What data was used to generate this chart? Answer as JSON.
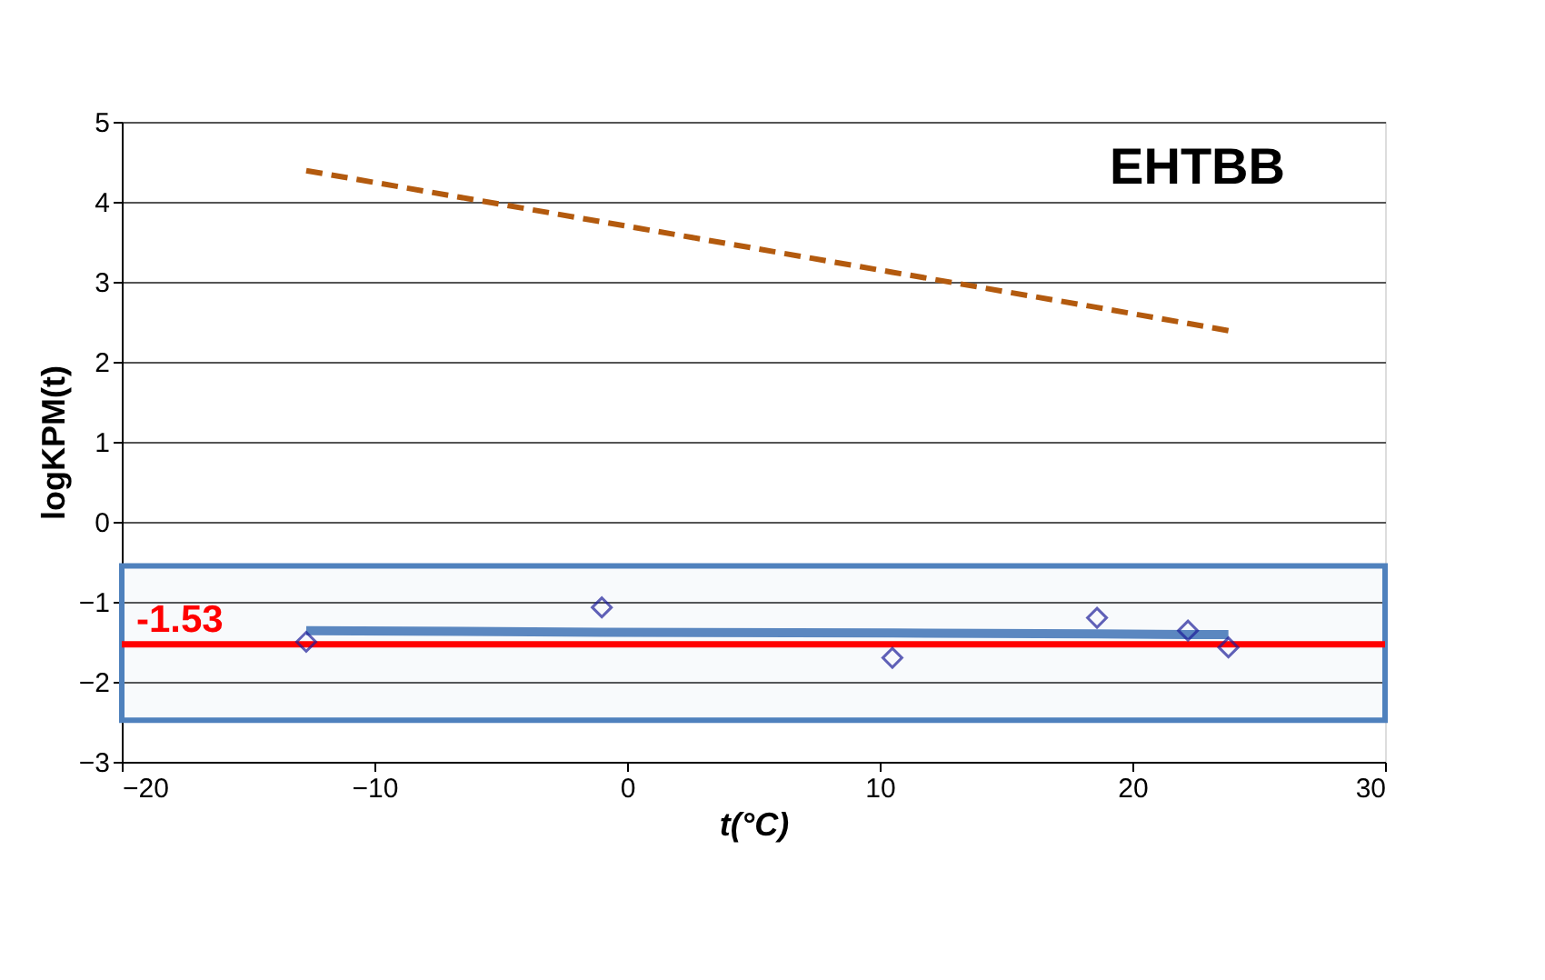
{
  "chart_data": {
    "type": "scatter",
    "xlabel": "t(°C)",
    "ylabel": "logKPM(t)",
    "annotations": [
      "EHTBB"
    ],
    "x": [
      -12.7,
      -1.0,
      10.5,
      18.6,
      22.2,
      23.8
    ],
    "series": [
      {
        "type": "scatter",
        "color": "#1f1f9a",
        "marker": "diamond",
        "values": [
          -1.5,
          -1.07,
          -1.7,
          -1.2,
          -1.36,
          -1.57
        ]
      },
      {
        "type": "line",
        "color": "#b35a0e",
        "line_style": "dashed",
        "values": [
          4.39,
          3.75,
          3.12,
          2.68,
          2.48,
          2.39
        ]
      },
      {
        "type": "line",
        "color": "#5b87c0",
        "line_style": "solid",
        "values": [
          -1.36,
          -1.38,
          -1.39,
          -1.4,
          -1.41,
          -1.41
        ]
      }
    ],
    "ref_lines": [
      {
        "axis": "y",
        "value": -1.53,
        "label": "-1.53",
        "color": "#ff0000",
        "line_style": "solid"
      }
    ],
    "bands": [
      {
        "axis": "y",
        "from": -0.55,
        "to": -2.48,
        "color": "#4f81bd"
      }
    ],
    "xlim": [
      -20,
      30
    ],
    "xticks": [
      -20,
      -10,
      0,
      10,
      20,
      30
    ],
    "ylim": [
      -3,
      5
    ],
    "yticks": [
      -3,
      -2,
      -1,
      0,
      1,
      2,
      3,
      4,
      5
    ],
    "grid": "y"
  }
}
